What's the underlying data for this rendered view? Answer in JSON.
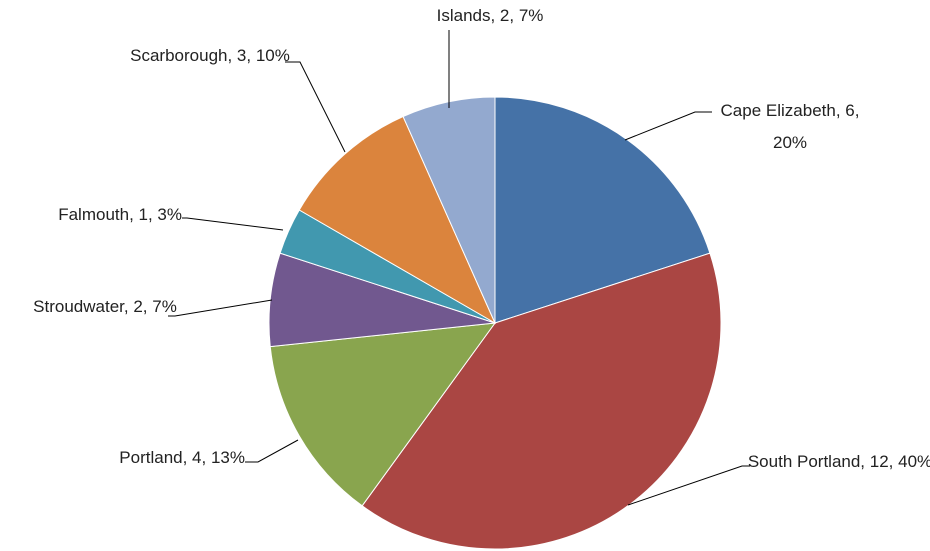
{
  "chart_data": {
    "type": "pie",
    "values": [
      6,
      12,
      4,
      2,
      1,
      3,
      2
    ],
    "value_labels": [
      "Cape Elizabeth, 6, 20%",
      "South Portland, 12, 40%",
      "Portland, 4, 13%",
      "Stroudwater, 2, 7%",
      "Falmouth, 1, 3%",
      "Scarborough, 3, 10%",
      "Islands, 2, 7%"
    ],
    "colors": [
      "#4572a7",
      "#aa4643",
      "#89a54e",
      "#71588f",
      "#4198af",
      "#db843d",
      "#93a9cf"
    ]
  }
}
